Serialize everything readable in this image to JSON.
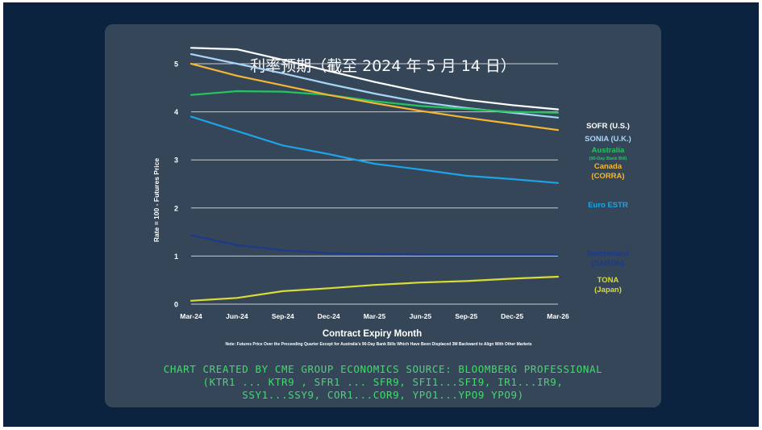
{
  "title": "利率预期（截至 2024 年 5 月 14 日）",
  "credit": {
    "line1": "CHART CREATED BY CME GROUP ECONOMICS  SOURCE: BLOOMBERG PROFESSIONAL",
    "line2": "(KTR1 ... KTR9 , SFR1 ... SFR9, SFI1...SFI9, IR1...IR9,",
    "line3": "SSY1...SSY9, COR1...COR9, YPO1...YPO9 YPO9)"
  },
  "colors": {
    "background": "#0c2340",
    "panel": "#354659",
    "grid": "#c8cdd4",
    "text": "#ffffff",
    "credit": "#3fdc6a"
  },
  "chart_data": {
    "type": "line",
    "title": "利率预期（截至 2024 年 5 月 14 日）",
    "xlabel": "Contract Expiry Month",
    "ylabel": "Rate = 100 - Futures Price",
    "note": "Note: Futures Price Over the Preceeding Quarter Except for Australia's 90-Day Bank Bills Which Have Been Displaced 3M Backward to Align With Other Markets",
    "categories": [
      "Mar-24",
      "Jun-24",
      "Sep-24",
      "Dec-24",
      "Mar-25",
      "Jun-25",
      "Sep-25",
      "Dec-25",
      "Mar-26"
    ],
    "ylim": [
      0,
      5
    ],
    "yticks": [
      0,
      1,
      2,
      3,
      4,
      5
    ],
    "grid": true,
    "legend_position": "right",
    "series": [
      {
        "name": "SOFR (U.S.)",
        "label_lines": [
          "SOFR (U.S.)"
        ],
        "color": "#ffffff",
        "values": [
          5.33,
          5.3,
          5.08,
          4.85,
          4.62,
          4.42,
          4.25,
          4.14,
          4.05
        ]
      },
      {
        "name": "SONIA (U.K.)",
        "label_lines": [
          "SONIA (U.K.)"
        ],
        "color": "#a9d4f5",
        "values": [
          5.2,
          5.0,
          4.8,
          4.58,
          4.38,
          4.2,
          4.08,
          3.98,
          3.88
        ]
      },
      {
        "name": "Australia (90-Day Bank Bill)",
        "label_lines": [
          "Australia",
          "(90-Day Bank Bill)"
        ],
        "color": "#22c55e",
        "values": [
          4.35,
          4.43,
          4.42,
          4.35,
          4.22,
          4.12,
          4.06,
          4.0,
          3.98
        ]
      },
      {
        "name": "Canada (CORRA)",
        "label_lines": [
          "Canada",
          "(CORRA)"
        ],
        "color": "#f5b731",
        "values": [
          5.0,
          4.75,
          4.55,
          4.35,
          4.18,
          4.02,
          3.88,
          3.75,
          3.62
        ]
      },
      {
        "name": "Euro ESTR",
        "label_lines": [
          "Euro ESTR"
        ],
        "color": "#1ea3e6",
        "values": [
          3.9,
          3.6,
          3.3,
          3.12,
          2.92,
          2.8,
          2.67,
          2.6,
          2.52
        ]
      },
      {
        "name": "Switzerland (SARON)",
        "label_lines": [
          "Switzerland",
          "(SARON)"
        ],
        "color": "#1b3a8c",
        "values": [
          1.43,
          1.23,
          1.12,
          1.06,
          1.04,
          1.03,
          1.03,
          1.03,
          1.03
        ]
      },
      {
        "name": "TONA (Japan)",
        "label_lines": [
          "TONA",
          "(Japan)"
        ],
        "color": "#d9dc35",
        "values": [
          0.07,
          0.13,
          0.27,
          0.33,
          0.4,
          0.45,
          0.48,
          0.53,
          0.57
        ]
      }
    ]
  }
}
